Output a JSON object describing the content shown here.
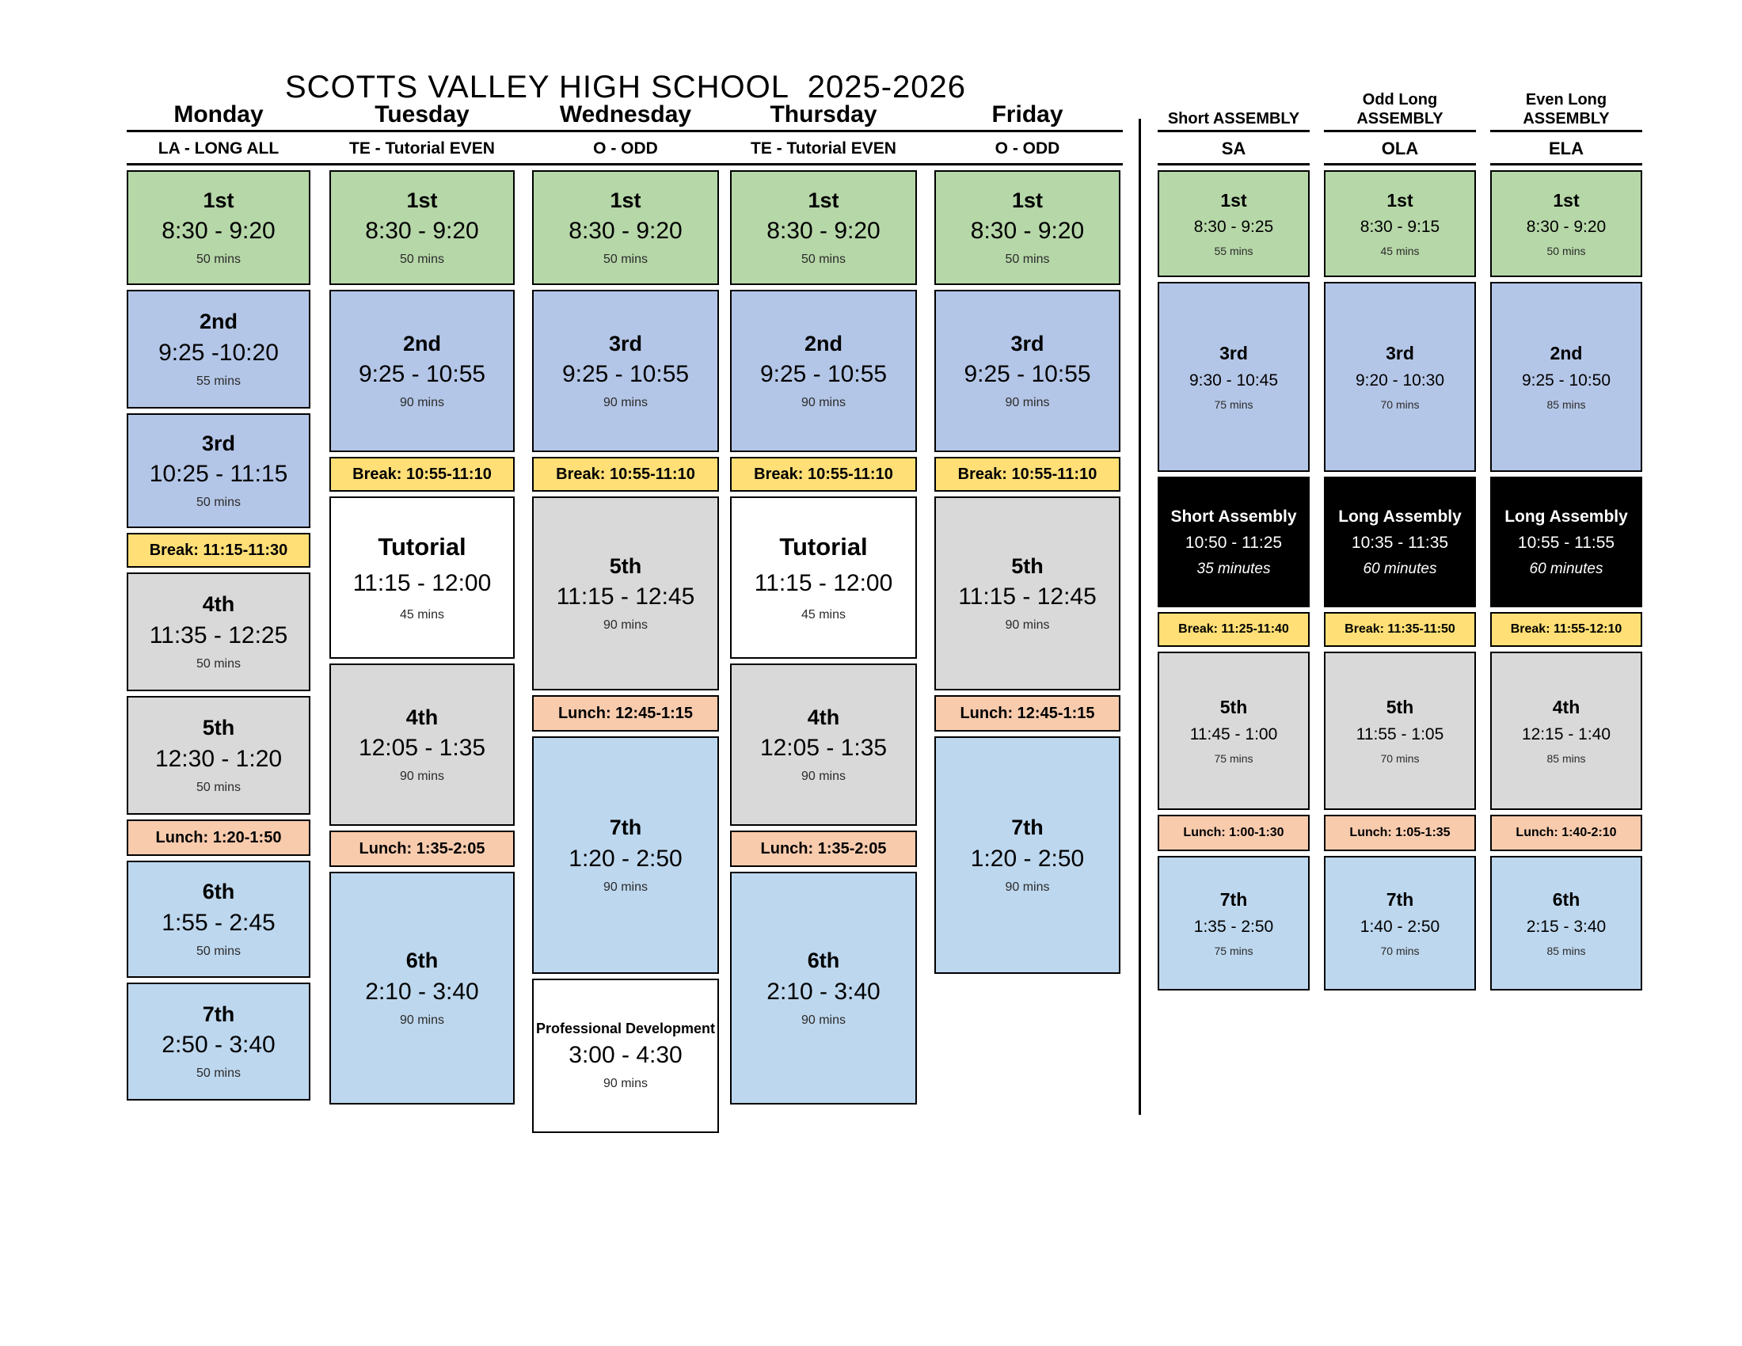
{
  "title": "SCOTTS VALLEY HIGH SCHOOL  2025-2026",
  "palette": {
    "green": "#b6d7a8",
    "blue": "#b4c6e7",
    "lightblue": "#bdd7ee",
    "gray": "#d9d9d9",
    "yellow": "#ffdf76",
    "orange": "#f8cbad",
    "black": "#000000",
    "white": "#ffffff"
  },
  "day_columns": [
    {
      "id": "monday",
      "header": "Monday",
      "subtitle": "LA - LONG ALL",
      "blocks": [
        {
          "kind": "class",
          "color": "green",
          "period": "1st",
          "time": "8:30 - 9:20",
          "mins": "50 mins"
        },
        {
          "kind": "class",
          "color": "blue",
          "period": "2nd",
          "time": "9:25 -10:20",
          "mins": "55 mins"
        },
        {
          "kind": "class",
          "color": "blue",
          "period": "3rd",
          "time": "10:25 - 11:15",
          "mins": "50 mins"
        },
        {
          "kind": "bar",
          "color": "yellow",
          "label": "Break: 11:15-11:30"
        },
        {
          "kind": "class",
          "color": "gray",
          "period": "4th",
          "time": "11:35 - 12:25",
          "mins": "50 mins"
        },
        {
          "kind": "class",
          "color": "gray",
          "period": "5th",
          "time": "12:30 - 1:20",
          "mins": "50 mins"
        },
        {
          "kind": "bar",
          "color": "orange",
          "label": "Lunch: 1:20-1:50"
        },
        {
          "kind": "class",
          "color": "lightblue",
          "period": "6th",
          "time": "1:55 - 2:45",
          "mins": "50 mins"
        },
        {
          "kind": "class",
          "color": "lightblue",
          "period": "7th",
          "time": "2:50 - 3:40",
          "mins": "50 mins"
        }
      ]
    },
    {
      "id": "tuesday",
      "header": "Tuesday",
      "subtitle": "TE - Tutorial EVEN",
      "blocks": [
        {
          "kind": "class",
          "color": "green",
          "period": "1st",
          "time": "8:30 - 9:20",
          "mins": "50 mins"
        },
        {
          "kind": "class",
          "color": "blue",
          "period": "2nd",
          "time": "9:25 - 10:55",
          "mins": "90 mins"
        },
        {
          "kind": "bar",
          "color": "yellow",
          "label": "Break: 10:55-11:10"
        },
        {
          "kind": "class",
          "color": "white",
          "variant": "tutorial",
          "period": "Tutorial",
          "time": "11:15 - 12:00",
          "mins": "45 mins"
        },
        {
          "kind": "class",
          "color": "gray",
          "period": "4th",
          "time": "12:05 - 1:35",
          "mins": "90 mins"
        },
        {
          "kind": "bar",
          "color": "orange",
          "label": "Lunch: 1:35-2:05"
        },
        {
          "kind": "class",
          "color": "lightblue",
          "period": "6th",
          "time": "2:10 - 3:40",
          "mins": "90 mins"
        }
      ]
    },
    {
      "id": "wednesday",
      "header": "Wednesday",
      "subtitle": "O - ODD",
      "blocks": [
        {
          "kind": "class",
          "color": "green",
          "period": "1st",
          "time": "8:30 - 9:20",
          "mins": "50 mins"
        },
        {
          "kind": "class",
          "color": "blue",
          "period": "3rd",
          "time": "9:25 - 10:55",
          "mins": "90 mins"
        },
        {
          "kind": "bar",
          "color": "yellow",
          "label": "Break: 10:55-11:10"
        },
        {
          "kind": "class",
          "color": "gray",
          "period": "5th",
          "time": "11:15 - 12:45",
          "mins": "90 mins"
        },
        {
          "kind": "bar",
          "color": "orange",
          "label": "Lunch: 12:45-1:15"
        },
        {
          "kind": "class",
          "color": "lightblue",
          "period": "7th",
          "time": "1:20 - 2:50",
          "mins": "90 mins"
        },
        {
          "kind": "class",
          "color": "white",
          "variant": "pd",
          "period": "Professional Development",
          "time": "3:00 - 4:30",
          "mins": "90 mins"
        }
      ]
    },
    {
      "id": "thursday",
      "header": "Thursday",
      "subtitle": "TE - Tutorial EVEN",
      "blocks": [
        {
          "kind": "class",
          "color": "green",
          "period": "1st",
          "time": "8:30 - 9:20",
          "mins": "50 mins"
        },
        {
          "kind": "class",
          "color": "blue",
          "period": "2nd",
          "time": "9:25 - 10:55",
          "mins": "90 mins"
        },
        {
          "kind": "bar",
          "color": "yellow",
          "label": "Break: 10:55-11:10"
        },
        {
          "kind": "class",
          "color": "white",
          "variant": "tutorial",
          "period": "Tutorial",
          "time": "11:15 - 12:00",
          "mins": "45 mins"
        },
        {
          "kind": "class",
          "color": "gray",
          "period": "4th",
          "time": "12:05 - 1:35",
          "mins": "90 mins"
        },
        {
          "kind": "bar",
          "color": "orange",
          "label": "Lunch: 1:35-2:05"
        },
        {
          "kind": "class",
          "color": "lightblue",
          "period": "6th",
          "time": "2:10 - 3:40",
          "mins": "90 mins"
        }
      ]
    },
    {
      "id": "friday",
      "header": "Friday",
      "subtitle": "O - ODD",
      "blocks": [
        {
          "kind": "class",
          "color": "green",
          "period": "1st",
          "time": "8:30 - 9:20",
          "mins": "50 mins"
        },
        {
          "kind": "class",
          "color": "blue",
          "period": "3rd",
          "time": "9:25 - 10:55",
          "mins": "90 mins"
        },
        {
          "kind": "bar",
          "color": "yellow",
          "label": "Break: 10:55-11:10"
        },
        {
          "kind": "class",
          "color": "gray",
          "period": "5th",
          "time": "11:15 - 12:45",
          "mins": "90 mins"
        },
        {
          "kind": "bar",
          "color": "orange",
          "label": "Lunch: 12:45-1:15"
        },
        {
          "kind": "class",
          "color": "lightblue",
          "period": "7th",
          "time": "1:20 - 2:50",
          "mins": "90 mins"
        }
      ]
    }
  ],
  "assembly_columns": [
    {
      "id": "sa",
      "header_lines": [
        "Short ASSEMBLY"
      ],
      "subtitle": "SA",
      "blocks": [
        {
          "kind": "class",
          "color": "green",
          "period": "1st",
          "time": "8:30 - 9:25",
          "mins": "55 mins"
        },
        {
          "kind": "class",
          "color": "blue",
          "period": "3rd",
          "time": "9:30 - 10:45",
          "mins": "75 mins"
        },
        {
          "kind": "assembly",
          "color": "black",
          "period": "Short Assembly",
          "time": "10:50 - 11:25",
          "mins": "35 minutes"
        },
        {
          "kind": "bar",
          "color": "yellow",
          "label": "Break: 11:25-11:40"
        },
        {
          "kind": "class",
          "color": "gray",
          "period": "5th",
          "time": "11:45 - 1:00",
          "mins": "75 mins"
        },
        {
          "kind": "bar",
          "color": "orange",
          "label": "Lunch: 1:00-1:30"
        },
        {
          "kind": "class",
          "color": "lightblue",
          "period": "7th",
          "time": "1:35 - 2:50",
          "mins": "75 mins"
        }
      ]
    },
    {
      "id": "ola",
      "header_lines": [
        "Odd Long",
        "ASSEMBLY"
      ],
      "subtitle": "OLA",
      "blocks": [
        {
          "kind": "class",
          "color": "green",
          "period": "1st",
          "time": "8:30 - 9:15",
          "mins": "45 mins"
        },
        {
          "kind": "class",
          "color": "blue",
          "period": "3rd",
          "time": "9:20 - 10:30",
          "mins": "70 mins"
        },
        {
          "kind": "assembly",
          "color": "black",
          "period": "Long Assembly",
          "time": "10:35 - 11:35",
          "mins": "60 minutes"
        },
        {
          "kind": "bar",
          "color": "yellow",
          "label": "Break: 11:35-11:50"
        },
        {
          "kind": "class",
          "color": "gray",
          "period": "5th",
          "time": "11:55 - 1:05",
          "mins": "70 mins"
        },
        {
          "kind": "bar",
          "color": "orange",
          "label": "Lunch: 1:05-1:35"
        },
        {
          "kind": "class",
          "color": "lightblue",
          "period": "7th",
          "time": "1:40 - 2:50",
          "mins": "70 mins"
        }
      ]
    },
    {
      "id": "ela",
      "header_lines": [
        "Even Long",
        "ASSEMBLY"
      ],
      "subtitle": "ELA",
      "blocks": [
        {
          "kind": "class",
          "color": "green",
          "period": "1st",
          "time": "8:30 - 9:20",
          "mins": "50 mins"
        },
        {
          "kind": "class",
          "color": "blue",
          "period": "2nd",
          "time": "9:25 - 10:50",
          "mins": "85 mins"
        },
        {
          "kind": "assembly",
          "color": "black",
          "period": "Long Assembly",
          "time": "10:55 - 11:55",
          "mins": "60 minutes"
        },
        {
          "kind": "bar",
          "color": "yellow",
          "label": "Break: 11:55-12:10"
        },
        {
          "kind": "class",
          "color": "gray",
          "period": "4th",
          "time": "12:15 - 1:40",
          "mins": "85 mins"
        },
        {
          "kind": "bar",
          "color": "orange",
          "label": "Lunch: 1:40-2:10"
        },
        {
          "kind": "class",
          "color": "lightblue",
          "period": "6th",
          "time": "2:15 - 3:40",
          "mins": "85 mins"
        }
      ]
    }
  ]
}
